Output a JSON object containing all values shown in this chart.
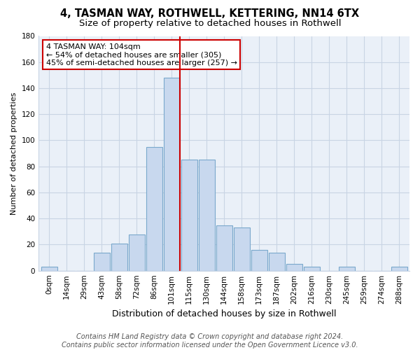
{
  "title": "4, TASMAN WAY, ROTHWELL, KETTERING, NN14 6TX",
  "subtitle": "Size of property relative to detached houses in Rothwell",
  "xlabel": "Distribution of detached houses by size in Rothwell",
  "ylabel": "Number of detached properties",
  "bar_labels": [
    "0sqm",
    "14sqm",
    "29sqm",
    "43sqm",
    "58sqm",
    "72sqm",
    "86sqm",
    "101sqm",
    "115sqm",
    "130sqm",
    "144sqm",
    "158sqm",
    "173sqm",
    "187sqm",
    "202sqm",
    "216sqm",
    "230sqm",
    "245sqm",
    "259sqm",
    "274sqm",
    "288sqm"
  ],
  "bar_heights": [
    3,
    0,
    0,
    14,
    21,
    28,
    95,
    148,
    85,
    85,
    35,
    33,
    16,
    14,
    5,
    3,
    0,
    3,
    0,
    0,
    3
  ],
  "bar_color": "#c8d8ee",
  "bar_edge_color": "#7aa8cc",
  "vline_color": "#cc0000",
  "vline_x_index": 7,
  "annotation_text_line1": "4 TASMAN WAY: 104sqm",
  "annotation_text_line2": "← 54% of detached houses are smaller (305)",
  "annotation_text_line3": "45% of semi-detached houses are larger (257) →",
  "annotation_box_color": "#ffffff",
  "annotation_box_edge_color": "#cc0000",
  "ylim": [
    0,
    180
  ],
  "yticks": [
    0,
    20,
    40,
    60,
    80,
    100,
    120,
    140,
    160,
    180
  ],
  "footer_line1": "Contains HM Land Registry data © Crown copyright and database right 2024.",
  "footer_line2": "Contains public sector information licensed under the Open Government Licence v3.0.",
  "background_color": "#ffffff",
  "plot_bg_color": "#eaf0f8",
  "grid_color": "#c8d4e4",
  "title_fontsize": 10.5,
  "subtitle_fontsize": 9.5,
  "xlabel_fontsize": 9,
  "ylabel_fontsize": 8,
  "tick_fontsize": 7.5,
  "footer_fontsize": 7,
  "annotation_fontsize": 8
}
